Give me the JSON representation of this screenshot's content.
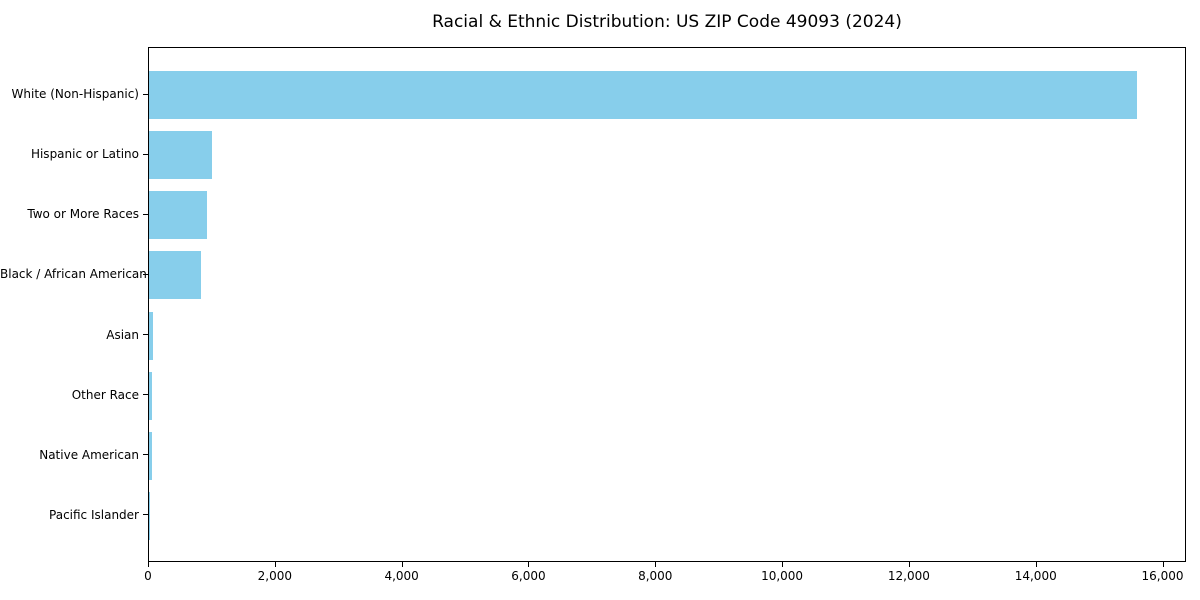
{
  "chart_data": {
    "type": "bar",
    "orientation": "horizontal",
    "title": "Racial & Ethnic Distribution: US ZIP Code 49093 (2024)",
    "categories": [
      "White (Non-Hispanic)",
      "Hispanic or Latino",
      "Two or More Races",
      "Black / African American",
      "Asian",
      "Other Race",
      "Native American",
      "Pacific Islander"
    ],
    "values": [
      15580,
      1000,
      915,
      825,
      70,
      52,
      48,
      8
    ],
    "xlabel": "",
    "ylabel": "",
    "xlim": [
      0,
      16370
    ],
    "x_ticks": [
      0,
      2000,
      4000,
      6000,
      8000,
      10000,
      12000,
      14000,
      16000
    ],
    "x_tick_labels": [
      "0",
      "2,000",
      "4,000",
      "6,000",
      "8,000",
      "10,000",
      "12,000",
      "14,000",
      "16,000"
    ],
    "bar_color": "#87CEEB",
    "axis_color": "#000000",
    "background_color": "#ffffff",
    "grid": "off",
    "legend": "none",
    "categories_order": "descending, largest at top"
  }
}
